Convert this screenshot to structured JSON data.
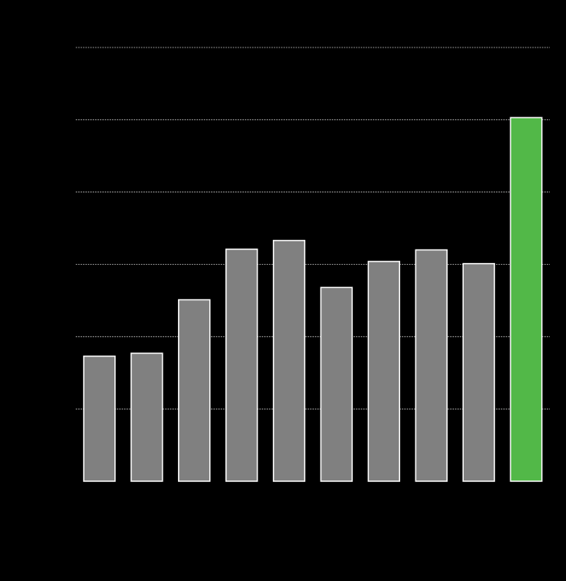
{
  "chart_data": {
    "type": "bar",
    "categories": [
      null,
      null,
      null,
      null,
      null,
      null,
      null,
      null,
      null,
      null
    ],
    "values": [
      1.73,
      1.77,
      2.51,
      3.21,
      3.33,
      2.68,
      3.04,
      3.2,
      3.01,
      5.03
    ],
    "colors": [
      "#808080",
      "#808080",
      "#808080",
      "#808080",
      "#808080",
      "#808080",
      "#808080",
      "#808080",
      "#808080",
      "#52b848"
    ],
    "ylim": [
      0,
      6
    ],
    "yticks": [
      1,
      2,
      3,
      4,
      5,
      6
    ],
    "grid": true
  }
}
